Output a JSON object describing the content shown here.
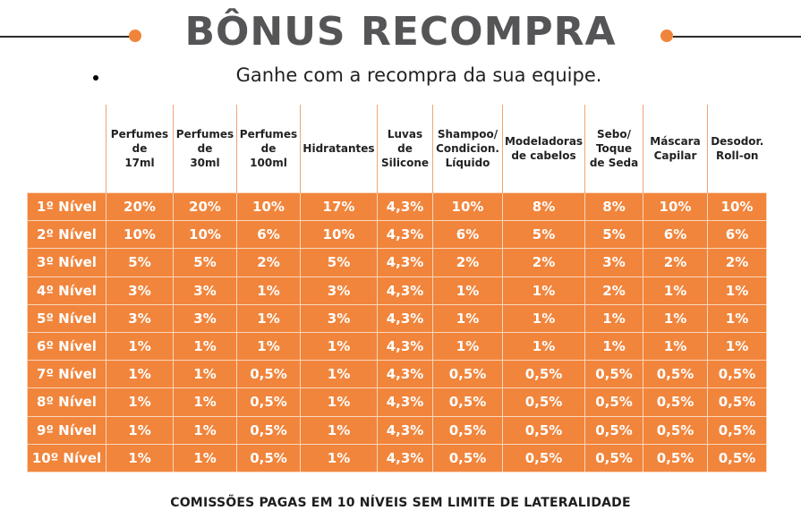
{
  "header": {
    "title": "BÔNUS RECOMPRA",
    "subtitle": "Ganhe com a recompra da sua equipe."
  },
  "colors": {
    "accent": "#f0843a",
    "cell_bg": "#f1853c",
    "title_text": "#555557"
  },
  "table": {
    "columns": [
      "Perfumes\nde\n17ml",
      "Perfumes\nde\n30ml",
      "Perfumes\nde\n100ml",
      "Hidratantes",
      "Luvas\nde\nSilicone",
      "Shampoo/\nCondicion.\nLíquido",
      "Modeladoras\nde cabelos",
      "Sebo/\nToque\nde Seda",
      "Máscara\nCapilar",
      "Desodor.\nRoll-on"
    ],
    "rows": [
      {
        "level": "1º Nível",
        "values": [
          "20%",
          "20%",
          "10%",
          "17%",
          "4,3%",
          "10%",
          "8%",
          "8%",
          "10%",
          "10%"
        ]
      },
      {
        "level": "2º Nível",
        "values": [
          "10%",
          "10%",
          "6%",
          "10%",
          "4,3%",
          "6%",
          "5%",
          "5%",
          "6%",
          "6%"
        ]
      },
      {
        "level": "3º Nível",
        "values": [
          "5%",
          "5%",
          "2%",
          "5%",
          "4,3%",
          "2%",
          "2%",
          "3%",
          "2%",
          "2%"
        ]
      },
      {
        "level": "4º Nível",
        "values": [
          "3%",
          "3%",
          "1%",
          "3%",
          "4,3%",
          "1%",
          "1%",
          "2%",
          "1%",
          "1%"
        ]
      },
      {
        "level": "5º Nível",
        "values": [
          "3%",
          "3%",
          "1%",
          "3%",
          "4,3%",
          "1%",
          "1%",
          "1%",
          "1%",
          "1%"
        ]
      },
      {
        "level": "6º Nível",
        "values": [
          "1%",
          "1%",
          "1%",
          "1%",
          "4,3%",
          "1%",
          "1%",
          "1%",
          "1%",
          "1%"
        ]
      },
      {
        "level": "7º Nível",
        "values": [
          "1%",
          "1%",
          "0,5%",
          "1%",
          "4,3%",
          "0,5%",
          "0,5%",
          "0,5%",
          "0,5%",
          "0,5%"
        ]
      },
      {
        "level": "8º Nível",
        "values": [
          "1%",
          "1%",
          "0,5%",
          "1%",
          "4,3%",
          "0,5%",
          "0,5%",
          "0,5%",
          "0,5%",
          "0,5%"
        ]
      },
      {
        "level": "9º Nível",
        "values": [
          "1%",
          "1%",
          "0,5%",
          "1%",
          "4,3%",
          "0,5%",
          "0,5%",
          "0,5%",
          "0,5%",
          "0,5%"
        ]
      },
      {
        "level": "10º Nível",
        "values": [
          "1%",
          "1%",
          "0,5%",
          "1%",
          "4,3%",
          "0,5%",
          "0,5%",
          "0,5%",
          "0,5%",
          "0,5%"
        ]
      }
    ]
  },
  "footer": {
    "text": "COMISSÕES PAGAS EM 10 NÍVEIS SEM LIMITE DE LATERALIDADE"
  }
}
